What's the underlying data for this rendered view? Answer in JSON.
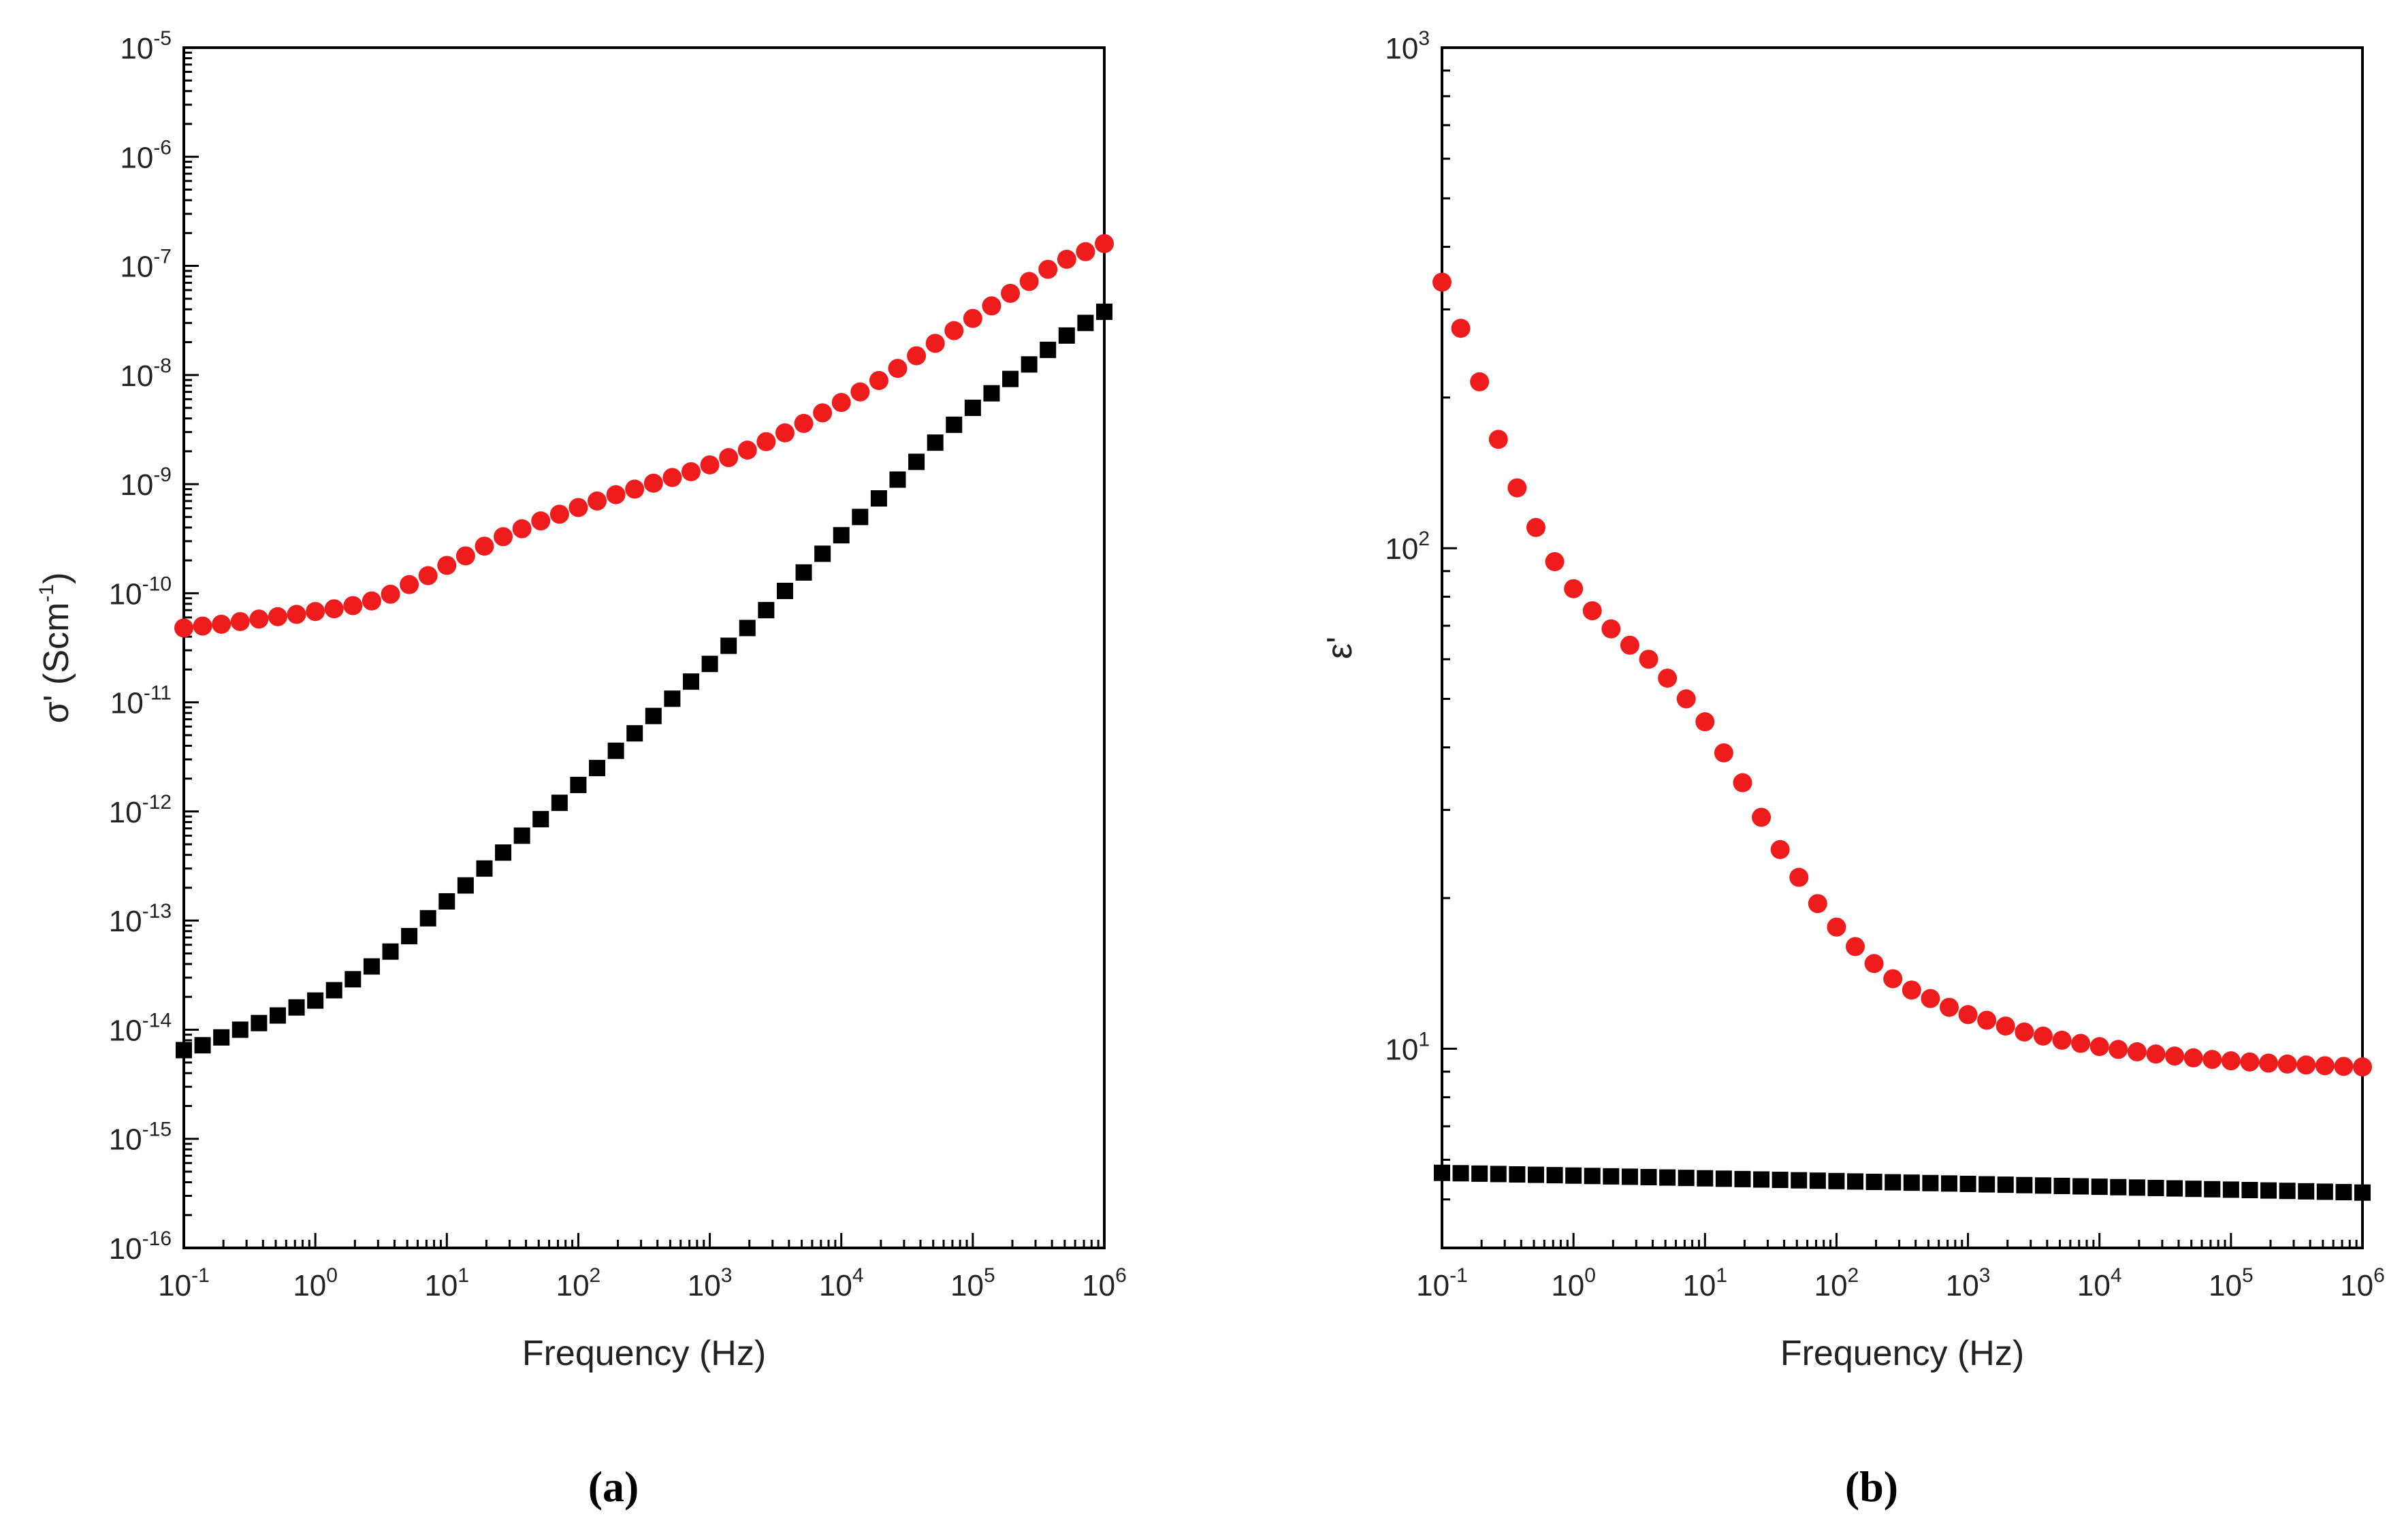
{
  "chart_data": [
    {
      "type": "scatter",
      "panel_label": "(a)",
      "xscale": "log",
      "yscale": "log",
      "xlim": [
        0.1,
        1000000
      ],
      "ylim": [
        1e-16,
        1e-05
      ],
      "xlabel": "Frequency (Hz)",
      "ylabel": {
        "base": "σ' (Scm",
        "exp": "-1",
        "close": ")"
      },
      "xticks": [
        {
          "base": "10",
          "exp": "-1",
          "value": 0.1
        },
        {
          "base": "10",
          "exp": "0",
          "value": 1
        },
        {
          "base": "10",
          "exp": "1",
          "value": 10
        },
        {
          "base": "10",
          "exp": "2",
          "value": 100
        },
        {
          "base": "10",
          "exp": "3",
          "value": 1000
        },
        {
          "base": "10",
          "exp": "4",
          "value": 10000
        },
        {
          "base": "10",
          "exp": "5",
          "value": 100000
        },
        {
          "base": "10",
          "exp": "6",
          "value": 1000000
        }
      ],
      "yticks": [
        {
          "base": "10",
          "exp": "-16",
          "value": 1e-16
        },
        {
          "base": "10",
          "exp": "-15",
          "value": 1e-15
        },
        {
          "base": "10",
          "exp": "-14",
          "value": 1e-14
        },
        {
          "base": "10",
          "exp": "-13",
          "value": 1e-13
        },
        {
          "base": "10",
          "exp": "-12",
          "value": 1e-12
        },
        {
          "base": "10",
          "exp": "-11",
          "value": 1e-11
        },
        {
          "base": "10",
          "exp": "-10",
          "value": 1e-10
        },
        {
          "base": "10",
          "exp": "-9",
          "value": 1e-09
        },
        {
          "base": "10",
          "exp": "-8",
          "value": 1e-08
        },
        {
          "base": "10",
          "exp": "-7",
          "value": 1e-07
        },
        {
          "base": "10",
          "exp": "-6",
          "value": 1e-06
        },
        {
          "base": "10",
          "exp": "-5",
          "value": 1e-05
        }
      ],
      "series": [
        {
          "name": "black squares",
          "marker": "square",
          "color": "#000000",
          "x": [
            0.1,
            0.1389,
            0.193,
            0.2683,
            0.3728,
            0.518,
            0.7197,
            1.0,
            1.3895,
            1.9307,
            2.6827,
            3.7276,
            5.1795,
            7.1969,
            10.0,
            13.895,
            19.307,
            26.827,
            37.276,
            51.795,
            71.969,
            100.0,
            138.95,
            193.07,
            268.27,
            372.76,
            517.95,
            719.69,
            1000.0,
            1389.5,
            1930.7,
            2682.7,
            3727.6,
            5179.5,
            7196.9,
            10000.0,
            13895,
            19307,
            26827,
            37276,
            51795,
            71969,
            100000,
            138950,
            193070,
            268270,
            372760,
            517950,
            719690,
            1000000
          ],
          "y": [
            6.5e-15,
            7.2e-15,
            8.5e-15,
            1e-14,
            1.15e-14,
            1.35e-14,
            1.6e-14,
            1.85e-14,
            2.3e-14,
            2.9e-14,
            3.8e-14,
            5.2e-14,
            7.2e-14,
            1.05e-13,
            1.5e-13,
            2.1e-13,
            3e-13,
            4.2e-13,
            6e-13,
            8.5e-13,
            1.2e-12,
            1.75e-12,
            2.5e-12,
            3.6e-12,
            5.2e-12,
            7.5e-12,
            1.08e-11,
            1.55e-11,
            2.25e-11,
            3.3e-11,
            4.8e-11,
            7e-11,
            1.05e-10,
            1.55e-10,
            2.3e-10,
            3.4e-10,
            5e-10,
            7.4e-10,
            1.1e-09,
            1.6e-09,
            2.4e-09,
            3.5e-09,
            5e-09,
            6.8e-09,
            9.2e-09,
            1.25e-08,
            1.7e-08,
            2.3e-08,
            3e-08,
            3.8e-08
          ]
        },
        {
          "name": "red circles",
          "marker": "circle",
          "color": "#ee1c1c",
          "x": [
            0.1,
            0.1389,
            0.193,
            0.2683,
            0.3728,
            0.518,
            0.7197,
            1.0,
            1.3895,
            1.9307,
            2.6827,
            3.7276,
            5.1795,
            7.1969,
            10.0,
            13.895,
            19.307,
            26.827,
            37.276,
            51.795,
            71.969,
            100.0,
            138.95,
            193.07,
            268.27,
            372.76,
            517.95,
            719.69,
            1000.0,
            1389.5,
            1930.7,
            2682.7,
            3727.6,
            5179.5,
            7196.9,
            10000.0,
            13895,
            19307,
            26827,
            37276,
            51795,
            71969,
            100000,
            138950,
            193070,
            268270,
            372760,
            517950,
            719690,
            1000000
          ],
          "y": [
            4.8e-11,
            5e-11,
            5.2e-11,
            5.5e-11,
            5.8e-11,
            6.1e-11,
            6.4e-11,
            6.8e-11,
            7.2e-11,
            7.7e-11,
            8.5e-11,
            9.8e-11,
            1.2e-10,
            1.45e-10,
            1.8e-10,
            2.2e-10,
            2.7e-10,
            3.3e-10,
            3.9e-10,
            4.6e-10,
            5.3e-10,
            6.1e-10,
            7e-10,
            8e-10,
            9e-10,
            1.02e-09,
            1.15e-09,
            1.3e-09,
            1.5e-09,
            1.75e-09,
            2.05e-09,
            2.45e-09,
            2.95e-09,
            3.6e-09,
            4.5e-09,
            5.6e-09,
            7e-09,
            8.9e-09,
            1.15e-08,
            1.5e-08,
            1.95e-08,
            2.55e-08,
            3.3e-08,
            4.3e-08,
            5.6e-08,
            7.2e-08,
            9.3e-08,
            1.15e-07,
            1.35e-07,
            1.6e-07
          ]
        }
      ]
    },
    {
      "type": "scatter",
      "panel_label": "(b)",
      "xscale": "log",
      "yscale": "log",
      "xlim": [
        0.1,
        1000000
      ],
      "ylim": [
        4,
        1000
      ],
      "xlabel": "Frequency (Hz)",
      "ylabel": {
        "base": "ε'",
        "exp": "",
        "close": ""
      },
      "xticks": [
        {
          "base": "10",
          "exp": "-1",
          "value": 0.1
        },
        {
          "base": "10",
          "exp": "0",
          "value": 1
        },
        {
          "base": "10",
          "exp": "1",
          "value": 10
        },
        {
          "base": "10",
          "exp": "2",
          "value": 100
        },
        {
          "base": "10",
          "exp": "3",
          "value": 1000
        },
        {
          "base": "10",
          "exp": "4",
          "value": 10000
        },
        {
          "base": "10",
          "exp": "5",
          "value": 100000
        },
        {
          "base": "10",
          "exp": "6",
          "value": 1000000
        }
      ],
      "yticks": [
        {
          "base": "10",
          "exp": "1",
          "value": 10
        },
        {
          "base": "10",
          "exp": "2",
          "value": 100
        },
        {
          "base": "10",
          "exp": "3",
          "value": 1000
        }
      ],
      "series": [
        {
          "name": "black squares",
          "marker": "square",
          "color": "#000000",
          "x": [
            0.1,
            0.1389,
            0.193,
            0.2683,
            0.3728,
            0.518,
            0.7197,
            1.0,
            1.3895,
            1.9307,
            2.6827,
            3.7276,
            5.1795,
            7.1969,
            10.0,
            13.895,
            19.307,
            26.827,
            37.276,
            51.795,
            71.969,
            100.0,
            138.95,
            193.07,
            268.27,
            372.76,
            517.95,
            719.69,
            1000.0,
            1389.5,
            1930.7,
            2682.7,
            3727.6,
            5179.5,
            7196.9,
            10000.0,
            13895,
            19307,
            26827,
            37276,
            51795,
            71969,
            100000,
            138950,
            193070,
            268270,
            372760,
            517950,
            719690,
            1000000
          ],
          "y": [
            5.65,
            5.64,
            5.63,
            5.62,
            5.61,
            5.6,
            5.59,
            5.58,
            5.57,
            5.56,
            5.55,
            5.54,
            5.53,
            5.52,
            5.51,
            5.5,
            5.49,
            5.48,
            5.47,
            5.46,
            5.45,
            5.44,
            5.43,
            5.42,
            5.41,
            5.4,
            5.39,
            5.38,
            5.37,
            5.36,
            5.35,
            5.34,
            5.33,
            5.32,
            5.31,
            5.3,
            5.29,
            5.28,
            5.27,
            5.26,
            5.25,
            5.24,
            5.23,
            5.22,
            5.21,
            5.2,
            5.19,
            5.18,
            5.17,
            5.16
          ]
        },
        {
          "name": "red circles",
          "marker": "circle",
          "color": "#ee1c1c",
          "x": [
            0.1,
            0.1389,
            0.193,
            0.2683,
            0.3728,
            0.518,
            0.7197,
            1.0,
            1.3895,
            1.9307,
            2.6827,
            3.7276,
            5.1795,
            7.1969,
            10.0,
            13.895,
            19.307,
            26.827,
            37.276,
            51.795,
            71.969,
            100.0,
            138.95,
            193.07,
            268.27,
            372.76,
            517.95,
            719.69,
            1000.0,
            1389.5,
            1930.7,
            2682.7,
            3727.6,
            5179.5,
            7196.9,
            10000.0,
            13895,
            19307,
            26827,
            37276,
            51795,
            71969,
            100000,
            138950,
            193070,
            268270,
            372760,
            517950,
            719690,
            1000000
          ],
          "y": [
            340,
            275,
            215,
            165,
            132,
            110,
            94,
            83,
            75,
            69,
            64,
            60,
            55,
            50,
            45,
            39,
            34,
            29,
            25,
            22,
            19.5,
            17.5,
            16,
            14.8,
            13.8,
            13.1,
            12.6,
            12.1,
            11.7,
            11.4,
            11.1,
            10.8,
            10.6,
            10.4,
            10.25,
            10.1,
            9.97,
            9.86,
            9.76,
            9.67,
            9.59,
            9.52,
            9.46,
            9.41,
            9.36,
            9.32,
            9.28,
            9.25,
            9.22,
            9.2
          ]
        }
      ]
    }
  ]
}
